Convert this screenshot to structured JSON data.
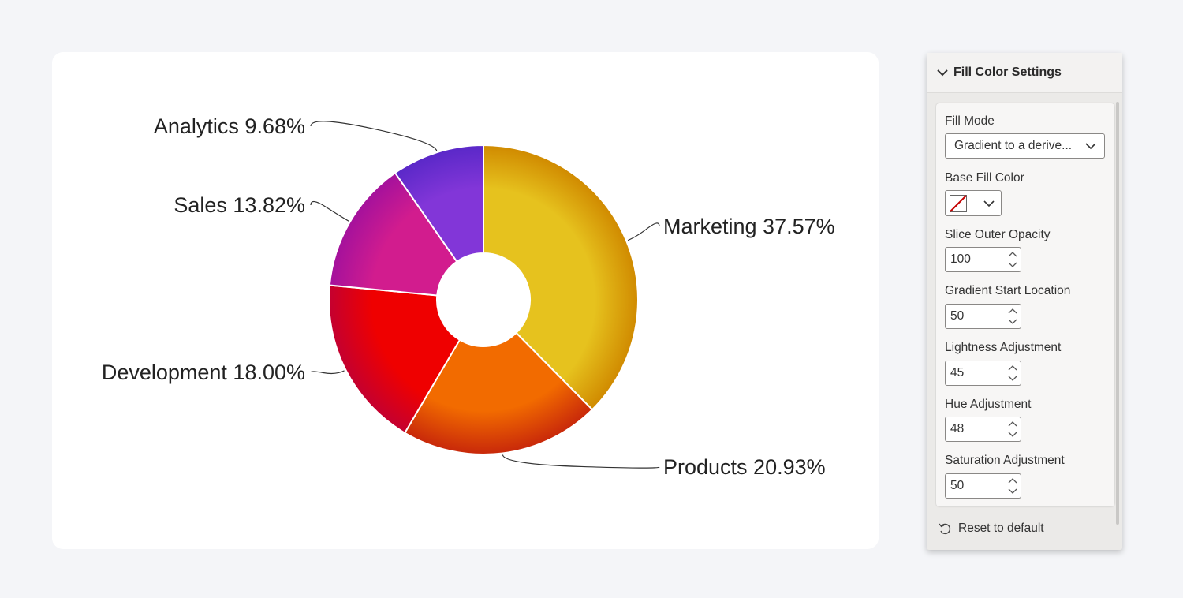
{
  "chart_data": {
    "type": "pie",
    "donut": true,
    "categories": [
      "Marketing",
      "Products",
      "Development",
      "Sales",
      "Analytics"
    ],
    "values": [
      37.57,
      20.93,
      18.0,
      13.82,
      9.68
    ],
    "labels": [
      "Marketing 37.57%",
      "Products 20.93%",
      "Development 18.00%",
      "Sales 13.82%",
      "Analytics 9.68%"
    ],
    "colors": [
      "#e6c21e",
      "#f26b00",
      "#ef0000",
      "#d21c8e",
      "#8236d8"
    ],
    "edge_colors": [
      "#d08a00",
      "#c8280a",
      "#c40030",
      "#a4119c",
      "#5a28c8"
    ]
  },
  "panel": {
    "title": "Fill Color Settings",
    "fill_mode": {
      "label": "Fill Mode",
      "value": "Gradient to a derive..."
    },
    "base_fill_color": {
      "label": "Base Fill Color"
    },
    "fields": [
      {
        "label": "Slice Outer Opacity",
        "value": "100"
      },
      {
        "label": "Gradient Start Location",
        "value": "50"
      },
      {
        "label": "Lightness Adjustment",
        "value": "45"
      },
      {
        "label": "Hue Adjustment",
        "value": "48"
      },
      {
        "label": "Saturation Adjustment",
        "value": "50"
      }
    ],
    "reset_label": "Reset to default"
  },
  "icons": {
    "collapse": "chevron-down-icon",
    "dropdown": "chevron-down-icon",
    "no_color": "no-color-swatch-icon",
    "spin_up": "chevron-up-icon",
    "spin_down": "chevron-down-icon",
    "reset": "undo-icon"
  }
}
